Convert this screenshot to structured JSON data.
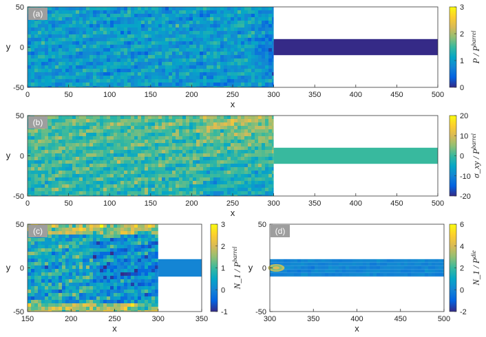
{
  "chart_data": [
    {
      "type": "heatmap",
      "panel_label": "(a)",
      "xlabel": "x",
      "ylabel": "y",
      "xlim": [
        0,
        500
      ],
      "ylim": [
        -50,
        50
      ],
      "xticks": [
        0,
        50,
        100,
        150,
        200,
        250,
        300,
        350,
        400,
        450,
        500
      ],
      "yticks": [
        -50,
        0,
        50
      ],
      "colorbar": {
        "label": "P / P^barrel",
        "label_main": "P / P",
        "label_sup": "barrel",
        "range": [
          0,
          3
        ],
        "ticks": [
          0,
          1,
          2,
          3
        ]
      },
      "domain": {
        "barrel": {
          "x": [
            0,
            300
          ],
          "y": [
            -50,
            50
          ]
        },
        "die": {
          "x": [
            300,
            500
          ],
          "y": [
            -10,
            10
          ]
        }
      },
      "field_levels": {
        "barrel_mean": 1.0,
        "barrel_fluct": 0.45,
        "die_mean": 0.0,
        "die_fluct": 0.0
      }
    },
    {
      "type": "heatmap",
      "panel_label": "(b)",
      "xlabel": "x",
      "ylabel": "y",
      "xlim": [
        0,
        500
      ],
      "ylim": [
        -50,
        50
      ],
      "xticks": [
        0,
        50,
        100,
        150,
        200,
        250,
        300,
        350,
        400,
        450,
        500
      ],
      "yticks": [
        -50,
        0,
        50
      ],
      "colorbar": {
        "label": "σ_xy / P^barrel",
        "label_main": "σ_xy / P",
        "label_sup": "barrel",
        "range": [
          -20,
          20
        ],
        "ticks": [
          -20,
          -10,
          0,
          10,
          20
        ]
      },
      "domain": {
        "barrel": {
          "x": [
            0,
            300
          ],
          "y": [
            -50,
            50
          ]
        },
        "die": {
          "x": [
            300,
            500
          ],
          "y": [
            -10,
            10
          ]
        }
      },
      "field_levels": {
        "barrel_mean": 0.0,
        "barrel_fluct": 6.0,
        "die_mean": 0.0,
        "die_fluct": 0.0
      }
    },
    {
      "type": "heatmap",
      "panel_label": "(c)",
      "xlabel": "x",
      "ylabel": "y",
      "xlim": [
        150,
        350
      ],
      "ylim": [
        -50,
        50
      ],
      "xticks": [
        150,
        200,
        250,
        300,
        350
      ],
      "yticks": [
        -50,
        0,
        50
      ],
      "colorbar": {
        "label": "N_1 / P^barrel",
        "label_main": "N_1 / P",
        "label_sup": "barrel",
        "range": [
          -1,
          3
        ],
        "ticks": [
          -1,
          0,
          1,
          2,
          3
        ]
      },
      "domain": {
        "barrel": {
          "x": [
            150,
            300
          ],
          "y": [
            -50,
            50
          ]
        },
        "die": {
          "x": [
            300,
            350
          ],
          "y": [
            -10,
            10
          ]
        }
      },
      "field_levels": {
        "barrel_mean": 0.6,
        "barrel_fluct": 0.9,
        "die_mean": 0.0,
        "die_fluct": 0.0
      }
    },
    {
      "type": "heatmap",
      "panel_label": "(d)",
      "xlabel": "x",
      "ylabel": "y",
      "xlim": [
        300,
        500
      ],
      "ylim": [
        -50,
        50
      ],
      "xticks": [
        300,
        350,
        400,
        450,
        500
      ],
      "yticks": [
        -50,
        0,
        50
      ],
      "colorbar": {
        "label": "N_1 / P^die",
        "label_main": "N_1 / P",
        "label_sup": "die",
        "range": [
          -2,
          6
        ],
        "ticks": [
          -2,
          0,
          2,
          4,
          6
        ]
      },
      "domain": {
        "die": {
          "x": [
            300,
            500
          ],
          "y": [
            -10,
            10
          ]
        }
      },
      "field_levels": {
        "die_mean": 0.0,
        "die_fluct": 0.3,
        "inlet_peak": 4.0
      }
    }
  ],
  "colormap": [
    "#352a87",
    "#0363e1",
    "#1485d4",
    "#06a7c6",
    "#38b99e",
    "#92bf73",
    "#d9ba56",
    "#fcce2e",
    "#f9fb0e"
  ]
}
